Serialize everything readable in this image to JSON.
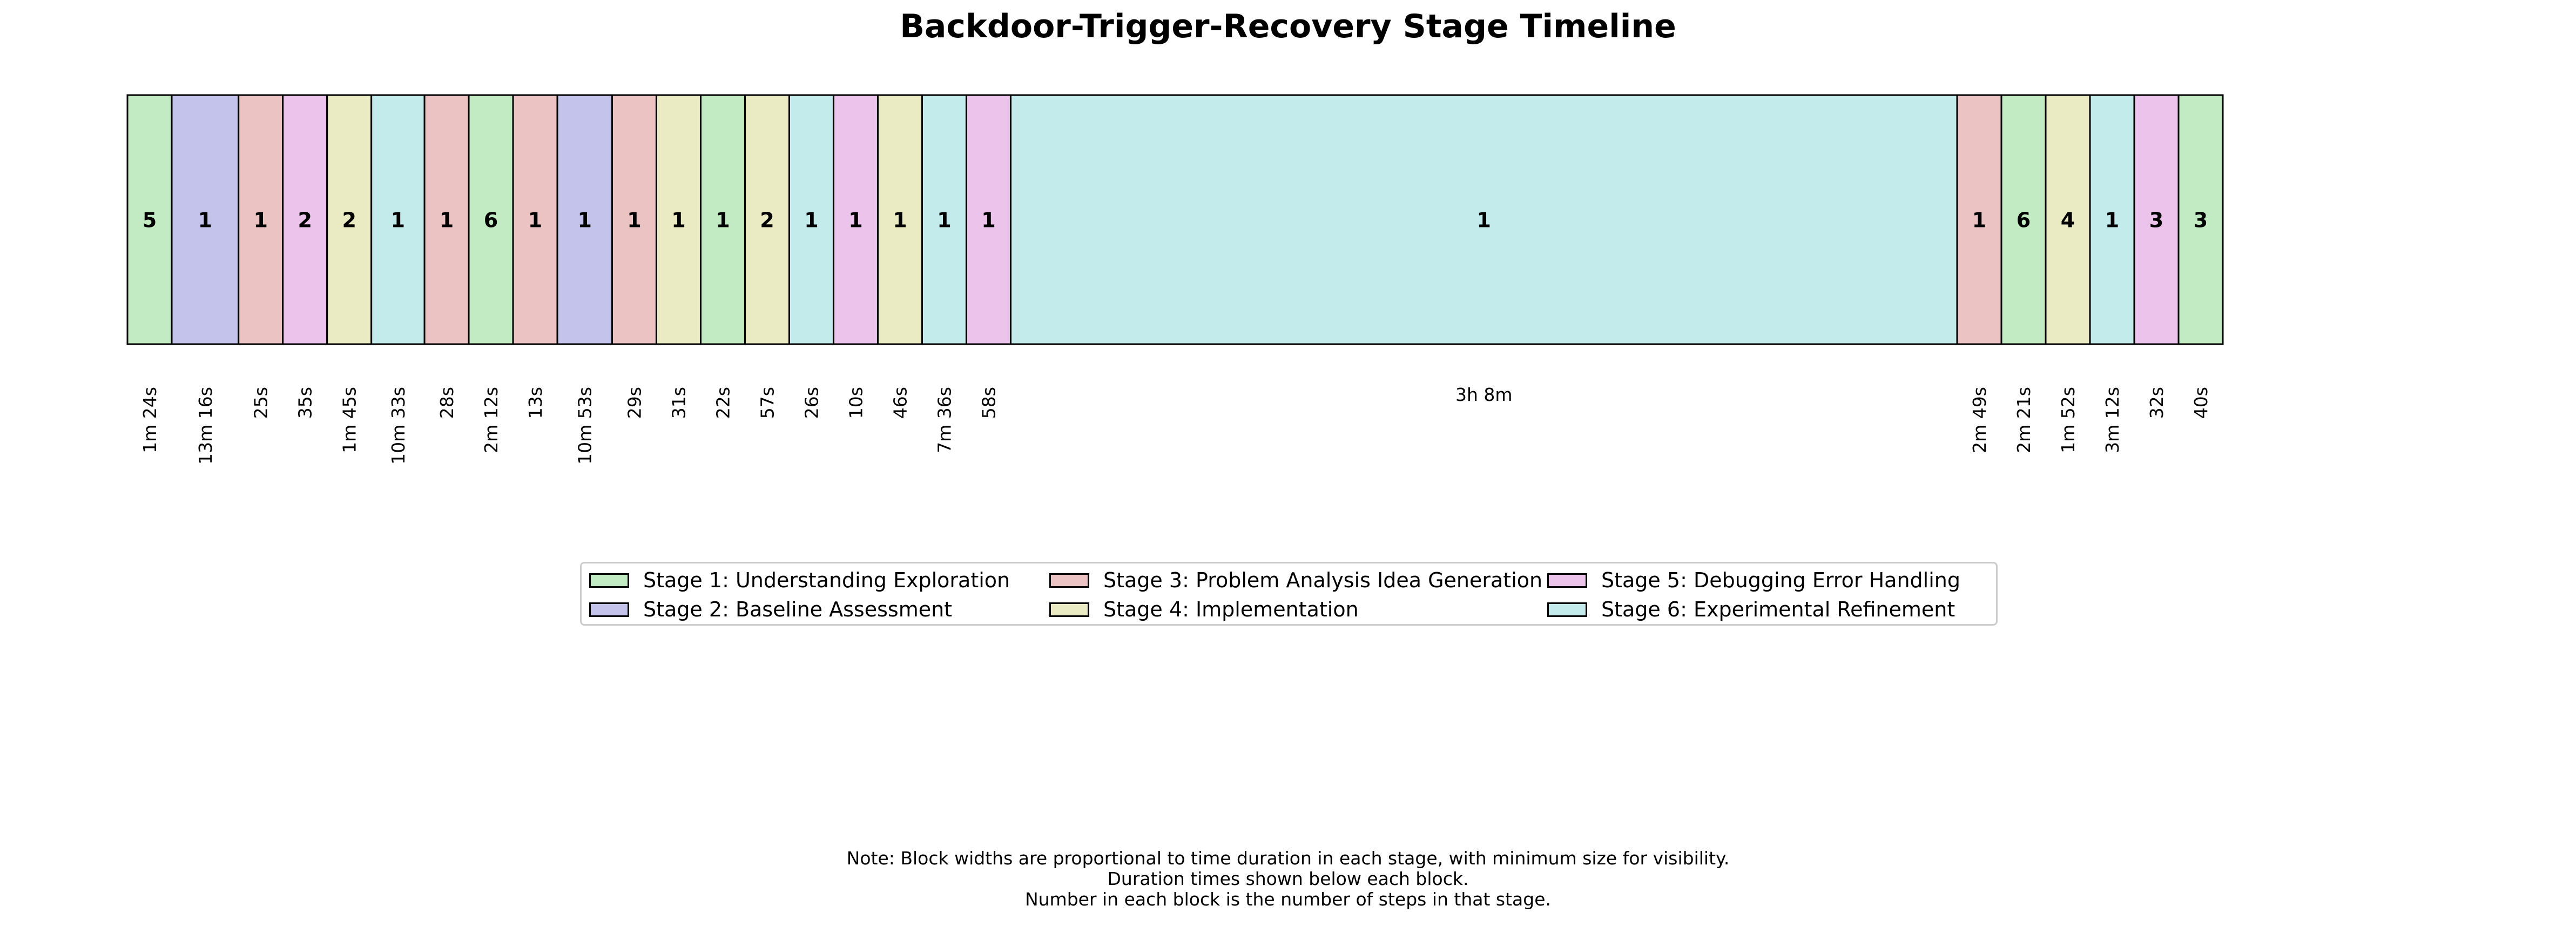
{
  "chart_data": {
    "type": "timeline",
    "title": "Backdoor-Trigger-Recovery Stage Timeline",
    "stages": [
      {
        "id": 1,
        "name": "Stage 1: Understanding Exploration",
        "color": "#c3ebc3"
      },
      {
        "id": 2,
        "name": "Stage 2: Baseline Assessment",
        "color": "#c3c3eb"
      },
      {
        "id": 3,
        "name": "Stage 3: Problem Analysis Idea Generation",
        "color": "#ebc3c3"
      },
      {
        "id": 4,
        "name": "Stage 4: Implementation",
        "color": "#ebebc3"
      },
      {
        "id": 5,
        "name": "Stage 5: Debugging Error Handling",
        "color": "#ebc3eb"
      },
      {
        "id": 6,
        "name": "Stage 6: Experimental Refinement",
        "color": "#c3ebeb"
      }
    ],
    "blocks": [
      {
        "stage": 1,
        "steps": 5,
        "duration": "1m 24s",
        "seconds": 84
      },
      {
        "stage": 2,
        "steps": 1,
        "duration": "13m 16s",
        "seconds": 796
      },
      {
        "stage": 3,
        "steps": 1,
        "duration": "25s",
        "seconds": 25
      },
      {
        "stage": 5,
        "steps": 2,
        "duration": "35s",
        "seconds": 35
      },
      {
        "stage": 4,
        "steps": 2,
        "duration": "1m 45s",
        "seconds": 105
      },
      {
        "stage": 6,
        "steps": 1,
        "duration": "10m 33s",
        "seconds": 633
      },
      {
        "stage": 3,
        "steps": 1,
        "duration": "28s",
        "seconds": 28
      },
      {
        "stage": 1,
        "steps": 6,
        "duration": "2m 12s",
        "seconds": 132
      },
      {
        "stage": 3,
        "steps": 1,
        "duration": "13s",
        "seconds": 13
      },
      {
        "stage": 2,
        "steps": 1,
        "duration": "10m 53s",
        "seconds": 653
      },
      {
        "stage": 3,
        "steps": 1,
        "duration": "29s",
        "seconds": 29
      },
      {
        "stage": 4,
        "steps": 1,
        "duration": "31s",
        "seconds": 31
      },
      {
        "stage": 1,
        "steps": 1,
        "duration": "22s",
        "seconds": 22
      },
      {
        "stage": 4,
        "steps": 2,
        "duration": "57s",
        "seconds": 57
      },
      {
        "stage": 6,
        "steps": 1,
        "duration": "26s",
        "seconds": 26
      },
      {
        "stage": 5,
        "steps": 1,
        "duration": "10s",
        "seconds": 10
      },
      {
        "stage": 4,
        "steps": 1,
        "duration": "46s",
        "seconds": 46
      },
      {
        "stage": 6,
        "steps": 1,
        "duration": "7m 36s",
        "seconds": 456
      },
      {
        "stage": 5,
        "steps": 1,
        "duration": "58s",
        "seconds": 58
      },
      {
        "stage": 6,
        "steps": 1,
        "duration": "3h 8m",
        "seconds": 11280
      },
      {
        "stage": 3,
        "steps": 1,
        "duration": "2m 49s",
        "seconds": 169
      },
      {
        "stage": 1,
        "steps": 6,
        "duration": "2m 21s",
        "seconds": 141
      },
      {
        "stage": 4,
        "steps": 4,
        "duration": "1m 52s",
        "seconds": 112
      },
      {
        "stage": 6,
        "steps": 1,
        "duration": "3m 12s",
        "seconds": 192
      },
      {
        "stage": 5,
        "steps": 3,
        "duration": "32s",
        "seconds": 32
      },
      {
        "stage": 1,
        "steps": 3,
        "duration": "40s",
        "seconds": 40
      }
    ],
    "legend_position": "bottom-center",
    "notes": [
      "Note: Block widths are proportional to time duration in each stage, with minimum size for visibility.",
      "Duration times shown below each block.",
      "Number in each block is the number of steps in that stage."
    ]
  }
}
